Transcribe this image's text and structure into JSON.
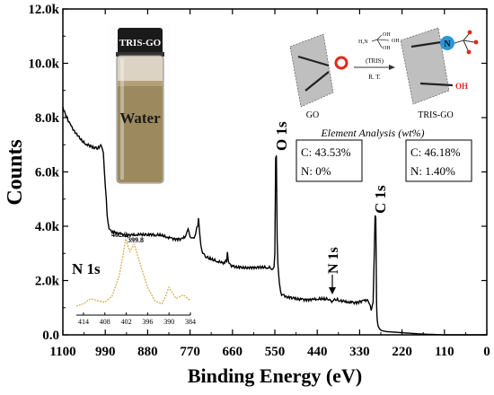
{
  "chart_data": {
    "type": "line",
    "xlabel": "Binding Energy (eV)",
    "ylabel": "Counts",
    "xlim": [
      1100,
      0
    ],
    "ylim": [
      0,
      12000
    ],
    "x_ticks": [
      1100,
      990,
      880,
      770,
      660,
      550,
      440,
      330,
      220,
      110,
      0
    ],
    "x_tick_labels": [
      "1100",
      "990",
      "880",
      "770",
      "660",
      "550",
      "440",
      "330",
      "220",
      "110",
      "0"
    ],
    "y_ticks": [
      0,
      2000,
      4000,
      6000,
      8000,
      10000,
      12000
    ],
    "y_tick_labels": [
      "0.0",
      "2.0k",
      "4.0k",
      "6.0k",
      "8.0k",
      "10.0k",
      "12.0k"
    ],
    "series": [
      {
        "x": [
          1100,
          1090,
          1080,
          1070,
          1060,
          1050,
          1040,
          1030,
          1020,
          1010,
          1000,
          995,
          990,
          985,
          980,
          975,
          970,
          960,
          950,
          940,
          930,
          920,
          910,
          900,
          890,
          880,
          870,
          860,
          850,
          840,
          830,
          820,
          810,
          800,
          790,
          780,
          775,
          772,
          768,
          765,
          760,
          755,
          750,
          748,
          745,
          742,
          740,
          735,
          730,
          720,
          710,
          700,
          690,
          680,
          675,
          673,
          671,
          669,
          667,
          665,
          660,
          650,
          640,
          620,
          600,
          580,
          570,
          560,
          555,
          552,
          550,
          548,
          546,
          544,
          542,
          540,
          538,
          535,
          530,
          520,
          510,
          500,
          490,
          480,
          470,
          460,
          450,
          440,
          430,
          420,
          410,
          405,
          400,
          395,
          390,
          385,
          380,
          370,
          360,
          350,
          340,
          330,
          320,
          310,
          305,
          300,
          295,
          292,
          290,
          288,
          287,
          286,
          285,
          284,
          283,
          282,
          280,
          278,
          276,
          272,
          268,
          260,
          250,
          240,
          230,
          220,
          210,
          200,
          190,
          180,
          170,
          160,
          150,
          140,
          130,
          120,
          110,
          100,
          90,
          80,
          70,
          60,
          50,
          40,
          30,
          20,
          10,
          0
        ],
        "y": [
          8400,
          8050,
          7750,
          7520,
          7320,
          7120,
          7000,
          6920,
          6860,
          6840,
          6950,
          6700,
          5500,
          4400,
          3900,
          3850,
          3820,
          3780,
          3750,
          3720,
          3700,
          3700,
          3690,
          3680,
          3670,
          3660,
          3650,
          3640,
          3650,
          3630,
          3600,
          3580,
          3560,
          3560,
          3570,
          3700,
          3900,
          3750,
          3580,
          3570,
          3560,
          3750,
          4000,
          4300,
          3750,
          3300,
          3150,
          3000,
          2850,
          2780,
          2720,
          2680,
          2650,
          2640,
          2700,
          3050,
          2750,
          2640,
          2620,
          2600,
          2560,
          2540,
          2520,
          2500,
          2480,
          2450,
          2440,
          2430,
          2430,
          2500,
          3000,
          6500,
          6600,
          3500,
          2600,
          2200,
          1900,
          1600,
          1480,
          1420,
          1400,
          1380,
          1360,
          1340,
          1320,
          1310,
          1300,
          1300,
          1290,
          1280,
          1280,
          1270,
          1240,
          1330,
          1270,
          1250,
          1250,
          1240,
          1230,
          1230,
          1220,
          1260,
          1280,
          1300,
          1150,
          900,
          1200,
          3000,
          4400,
          4300,
          2500,
          1100,
          700,
          520,
          400,
          320,
          260,
          220,
          180,
          160,
          140,
          120,
          110,
          100,
          90,
          80,
          70,
          60,
          50,
          40,
          30,
          25,
          20,
          15,
          10,
          5,
          0,
          0,
          0,
          0,
          0,
          0,
          0,
          0,
          0,
          0,
          0,
          0
        ]
      }
    ],
    "peak_labels": [
      "O 1s",
      "C 1s",
      "N 1s"
    ],
    "inset": {
      "title": "N 1s",
      "x_tick_labels": [
        "414",
        "408",
        "402",
        "396",
        "390",
        "384"
      ],
      "peak_labels": [
        "402.2",
        "399.8"
      ],
      "x": [
        416,
        414,
        412,
        410,
        408,
        406,
        404,
        403,
        402.2,
        401,
        399.8,
        398,
        396,
        394,
        392,
        391,
        390,
        389,
        388,
        386,
        384
      ],
      "y": [
        0.05,
        0.08,
        0.15,
        0.12,
        0.1,
        0.18,
        0.45,
        0.7,
        0.95,
        0.78,
        0.88,
        0.6,
        0.3,
        0.12,
        0.08,
        0.18,
        0.3,
        0.22,
        0.15,
        0.2,
        0.12
      ]
    }
  },
  "photo": {
    "cap_label": "TRIS-GO",
    "liquid_label": "Water"
  },
  "scheme": {
    "reagent_label": "(TRIS)",
    "condition_label": "R. T.",
    "go_label": "GO",
    "tris_go_label": "TRIS-GO",
    "o_atom": "O",
    "n_atom": "N",
    "oh_label": "OH",
    "tris_formula": [
      "H₂N",
      "OH",
      "OH",
      "OH"
    ],
    "element_analysis_title": "Element Analysis (wt%)"
  },
  "analysis_boxes": [
    {
      "c": "C: 43.53%",
      "n": "N: 0%"
    },
    {
      "c": "C: 46.18%",
      "n": "N: 1.40%"
    }
  ]
}
